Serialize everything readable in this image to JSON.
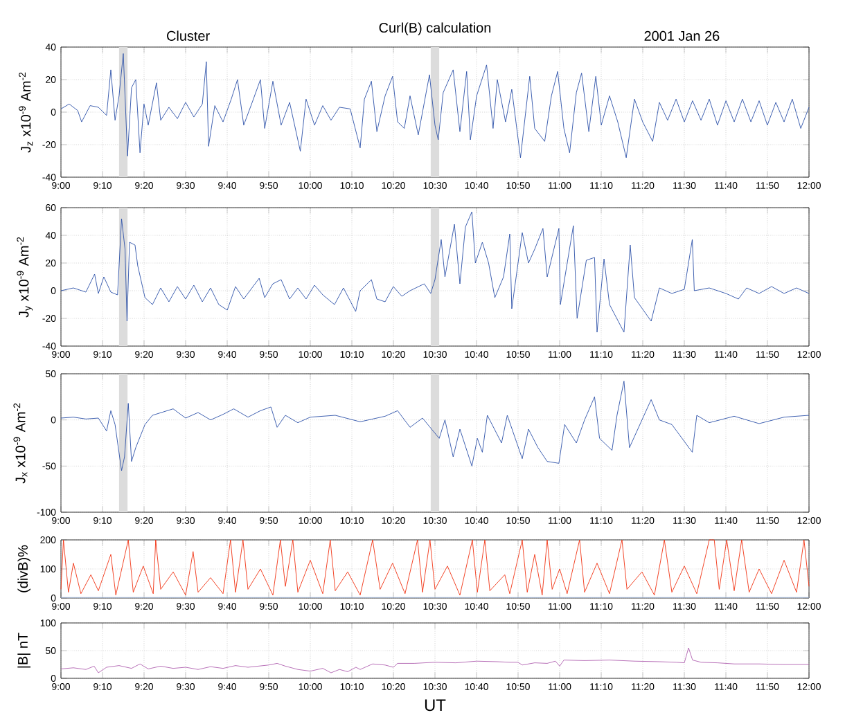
{
  "chart_data": [
    {
      "type": "line",
      "title": "Curl(B) calculation",
      "annotations": [
        "Cluster",
        "2001  Jan  26"
      ],
      "ylabel": "J$_{z}$ x10$^{-9}$ Am$^{-2}$",
      "xlim": [
        9,
        12
      ],
      "ylim": [
        -40,
        40
      ],
      "yticks": [
        -40,
        -20,
        0,
        20,
        40
      ],
      "grid": true,
      "xticks": [
        {
          "value": 9,
          "label": "9:00"
        },
        {
          "value": 9.1667,
          "label": "9:10"
        },
        {
          "value": 9.3333,
          "label": "9:20"
        },
        {
          "value": 9.5,
          "label": "9:30"
        },
        {
          "value": 9.6667,
          "label": "9:40"
        },
        {
          "value": 9.8333,
          "label": "9:50"
        },
        {
          "value": 10,
          "label": "10:00"
        },
        {
          "value": 10.1667,
          "label": "10:10"
        },
        {
          "value": 10.3333,
          "label": "10:20"
        },
        {
          "value": 10.5,
          "label": "10:30"
        },
        {
          "value": 10.6667,
          "label": "10:40"
        },
        {
          "value": 10.8333,
          "label": "10:50"
        },
        {
          "value": 11,
          "label": "11:00"
        },
        {
          "value": 11.1667,
          "label": "11:10"
        },
        {
          "value": 11.3333,
          "label": "11:20"
        },
        {
          "value": 11.5,
          "label": "11:30"
        },
        {
          "value": 11.6667,
          "label": "11:40"
        },
        {
          "value": 11.8333,
          "label": "11:50"
        },
        {
          "value": 12,
          "label": "12:00"
        }
      ],
      "bands": [
        {
          "axis": "x",
          "from": 9.233,
          "to": 9.267,
          "color": "#dcdcdc"
        },
        {
          "axis": "x",
          "from": 10.483,
          "to": 10.517,
          "color": "#dcdcdc"
        }
      ],
      "series": [
        {
          "color": "#2a4fa8",
          "x": [
            9.0,
            9.033,
            9.067,
            9.083,
            9.117,
            9.15,
            9.183,
            9.2,
            9.217,
            9.233,
            9.25,
            9.267,
            9.283,
            9.3,
            9.317,
            9.333,
            9.35,
            9.383,
            9.4,
            9.433,
            9.467,
            9.5,
            9.533,
            9.567,
            9.583,
            9.592,
            9.617,
            9.65,
            9.683,
            9.708,
            9.733,
            9.767,
            9.8,
            9.817,
            9.85,
            9.883,
            9.917,
            9.96,
            9.983,
            10.017,
            10.05,
            10.083,
            10.117,
            10.16,
            10.2,
            10.217,
            10.245,
            10.267,
            10.3,
            10.33,
            10.35,
            10.377,
            10.4,
            10.433,
            10.478,
            10.5,
            10.513,
            10.533,
            10.573,
            10.6,
            10.627,
            10.642,
            10.667,
            10.707,
            10.733,
            10.75,
            10.783,
            10.808,
            10.843,
            10.88,
            10.9,
            10.94,
            10.967,
            10.992,
            11.017,
            11.04,
            11.067,
            11.088,
            11.117,
            11.145,
            11.167,
            11.2,
            11.233,
            11.267,
            11.3,
            11.333,
            11.373,
            11.4,
            11.433,
            11.467,
            11.5,
            11.533,
            11.567,
            11.6,
            11.633,
            11.667,
            11.7,
            11.733,
            11.767,
            11.8,
            11.833,
            11.867,
            11.9,
            11.933,
            11.967,
            12.0
          ],
          "values": [
            2,
            5,
            1,
            -6,
            4,
            3,
            -2,
            26,
            -5,
            10,
            36,
            -27,
            15,
            20,
            -25,
            5,
            -8,
            18,
            -5,
            3,
            -4,
            6,
            -3,
            5,
            31,
            -21,
            4,
            -6,
            8,
            20,
            -8,
            6,
            20,
            -10,
            19,
            -8,
            6,
            -24,
            8,
            -8,
            4,
            -5,
            3,
            2,
            -22,
            8,
            19,
            -12,
            10,
            22,
            -6,
            -10,
            10,
            -14,
            23,
            -8,
            -17,
            12,
            26,
            -12,
            25,
            -17,
            10,
            29,
            -10,
            20,
            -6,
            14,
            -28,
            22,
            -10,
            -18,
            10,
            25,
            -10,
            -25,
            12,
            24,
            -12,
            22,
            -8,
            10,
            -6,
            -28,
            8,
            -6,
            -18,
            6,
            -5,
            8,
            -6,
            7,
            -5,
            8,
            -8,
            7,
            -6,
            8,
            -6,
            7,
            -8,
            6,
            -6,
            8,
            -10,
            3
          ]
        }
      ]
    },
    {
      "type": "line",
      "ylabel": "J$_{y}$ x10$^{-9}$ Am$^{-2}$",
      "xlim": [
        9,
        12
      ],
      "ylim": [
        -40,
        60
      ],
      "yticks": [
        -40,
        -20,
        0,
        20,
        40,
        60
      ],
      "grid": true,
      "xticks": [
        {
          "value": 9,
          "label": "9:00"
        },
        {
          "value": 9.1667,
          "label": "9:10"
        },
        {
          "value": 9.3333,
          "label": "9:20"
        },
        {
          "value": 9.5,
          "label": "9:30"
        },
        {
          "value": 9.6667,
          "label": "9:40"
        },
        {
          "value": 9.8333,
          "label": "9:50"
        },
        {
          "value": 10,
          "label": "10:00"
        },
        {
          "value": 10.1667,
          "label": "10:10"
        },
        {
          "value": 10.3333,
          "label": "10:20"
        },
        {
          "value": 10.5,
          "label": "10:30"
        },
        {
          "value": 10.6667,
          "label": "10:40"
        },
        {
          "value": 10.8333,
          "label": "10:50"
        },
        {
          "value": 11,
          "label": "11:00"
        },
        {
          "value": 11.1667,
          "label": "11:10"
        },
        {
          "value": 11.3333,
          "label": "11:20"
        },
        {
          "value": 11.5,
          "label": "11:30"
        },
        {
          "value": 11.6667,
          "label": "11:40"
        },
        {
          "value": 11.8333,
          "label": "11:50"
        },
        {
          "value": 12,
          "label": "12:00"
        }
      ],
      "bands": [
        {
          "axis": "x",
          "from": 9.233,
          "to": 9.267,
          "color": "#dcdcdc"
        },
        {
          "axis": "x",
          "from": 10.483,
          "to": 10.517,
          "color": "#dcdcdc"
        }
      ],
      "series": [
        {
          "color": "#2a4fa8",
          "x": [
            9.0,
            9.05,
            9.1,
            9.135,
            9.15,
            9.172,
            9.2,
            9.227,
            9.243,
            9.257,
            9.265,
            9.275,
            9.297,
            9.308,
            9.337,
            9.367,
            9.4,
            9.433,
            9.467,
            9.5,
            9.533,
            9.567,
            9.6,
            9.633,
            9.667,
            9.7,
            9.733,
            9.795,
            9.817,
            9.85,
            9.883,
            9.917,
            9.95,
            9.983,
            10.017,
            10.05,
            10.097,
            10.133,
            10.182,
            10.2,
            10.245,
            10.267,
            10.3,
            10.333,
            10.367,
            10.4,
            10.457,
            10.483,
            10.5,
            10.525,
            10.54,
            10.578,
            10.6,
            10.622,
            10.648,
            10.662,
            10.69,
            10.715,
            10.74,
            10.775,
            10.8,
            10.808,
            10.85,
            10.875,
            10.9,
            10.933,
            10.95,
            10.997,
            11.003,
            11.055,
            11.07,
            11.107,
            11.14,
            11.15,
            11.178,
            11.2,
            11.258,
            11.283,
            11.3,
            11.367,
            11.4,
            11.45,
            11.5,
            11.532,
            11.54,
            11.6,
            11.667,
            11.717,
            11.75,
            11.8,
            11.85,
            11.9,
            11.95,
            12.0
          ],
          "values": [
            0,
            2,
            -1,
            12,
            -2,
            10,
            -1,
            -3,
            52,
            30,
            -22,
            35,
            33,
            18,
            -5,
            -10,
            2,
            -8,
            3,
            -6,
            4,
            -8,
            2,
            -10,
            -14,
            3,
            -6,
            9,
            -5,
            5,
            8,
            -6,
            2,
            -6,
            4,
            -3,
            -10,
            2,
            -15,
            0,
            8,
            -6,
            -8,
            3,
            -4,
            0,
            5,
            -2,
            8,
            37,
            10,
            48,
            5,
            46,
            57,
            20,
            35,
            20,
            -5,
            10,
            41,
            -13,
            42,
            20,
            30,
            45,
            10,
            45,
            -10,
            47,
            -20,
            22,
            24,
            -30,
            23,
            -10,
            -30,
            33,
            -5,
            -22,
            2,
            -2,
            1,
            37,
            0,
            2,
            -2,
            -6,
            2,
            -2,
            3,
            -2,
            2,
            -2
          ]
        }
      ]
    },
    {
      "type": "line",
      "ylabel": "J$_{x}$ x10$^{-9}$ Am$^{-2}$",
      "xlim": [
        9,
        12
      ],
      "ylim": [
        -100,
        50
      ],
      "yticks": [
        -100,
        -50,
        0,
        50
      ],
      "grid": true,
      "xticks": [
        {
          "value": 9,
          "label": "9:00"
        },
        {
          "value": 9.1667,
          "label": "9:10"
        },
        {
          "value": 9.3333,
          "label": "9:20"
        },
        {
          "value": 9.5,
          "label": "9:30"
        },
        {
          "value": 9.6667,
          "label": "9:40"
        },
        {
          "value": 9.8333,
          "label": "9:50"
        },
        {
          "value": 10,
          "label": "10:00"
        },
        {
          "value": 10.1667,
          "label": "10:10"
        },
        {
          "value": 10.3333,
          "label": "10:20"
        },
        {
          "value": 10.5,
          "label": "10:30"
        },
        {
          "value": 10.6667,
          "label": "10:40"
        },
        {
          "value": 10.8333,
          "label": "10:50"
        },
        {
          "value": 11,
          "label": "11:00"
        },
        {
          "value": 11.1667,
          "label": "11:10"
        },
        {
          "value": 11.3333,
          "label": "11:20"
        },
        {
          "value": 11.5,
          "label": "11:30"
        },
        {
          "value": 11.6667,
          "label": "11:40"
        },
        {
          "value": 11.8333,
          "label": "11:50"
        },
        {
          "value": 12,
          "label": "12:00"
        }
      ],
      "bands": [
        {
          "axis": "x",
          "from": 9.233,
          "to": 9.267,
          "color": "#dcdcdc"
        },
        {
          "axis": "x",
          "from": 10.483,
          "to": 10.517,
          "color": "#dcdcdc"
        }
      ],
      "series": [
        {
          "color": "#2a4fa8",
          "x": [
            9.0,
            9.05,
            9.1,
            9.15,
            9.183,
            9.2,
            9.217,
            9.243,
            9.255,
            9.27,
            9.283,
            9.3,
            9.337,
            9.367,
            9.45,
            9.5,
            9.55,
            9.6,
            9.65,
            9.693,
            9.75,
            9.8,
            9.842,
            9.867,
            9.9,
            9.95,
            10.0,
            10.1,
            10.2,
            10.3,
            10.35,
            10.4,
            10.45,
            10.517,
            10.54,
            10.573,
            10.6,
            10.648,
            10.67,
            10.69,
            10.71,
            10.767,
            10.79,
            10.85,
            10.875,
            10.913,
            10.95,
            10.997,
            11.02,
            11.067,
            11.1,
            11.14,
            11.16,
            11.21,
            11.23,
            11.258,
            11.28,
            11.367,
            11.4,
            11.45,
            11.532,
            11.55,
            11.6,
            11.7,
            11.8,
            11.9,
            12.0
          ],
          "values": [
            2,
            3,
            1,
            2,
            -12,
            10,
            -5,
            -55,
            -40,
            18,
            -45,
            -30,
            -5,
            5,
            12,
            2,
            8,
            0,
            6,
            12,
            3,
            10,
            14,
            -8,
            5,
            -3,
            3,
            5,
            -2,
            4,
            10,
            -8,
            2,
            -20,
            0,
            -40,
            -10,
            -50,
            -20,
            -35,
            5,
            -25,
            5,
            -42,
            -10,
            -30,
            -45,
            -47,
            -5,
            -25,
            0,
            25,
            -20,
            -33,
            5,
            42,
            -30,
            22,
            0,
            -5,
            -35,
            5,
            -3,
            4,
            -4,
            3,
            5
          ]
        }
      ]
    },
    {
      "type": "line",
      "ylabel": "(divB)%",
      "xlim": [
        9,
        12
      ],
      "ylim": [
        0,
        200
      ],
      "yticks": [
        0,
        100,
        200
      ],
      "grid": true,
      "xticks": [
        {
          "value": 9,
          "label": "9:00"
        },
        {
          "value": 9.1667,
          "label": "9:10"
        },
        {
          "value": 9.3333,
          "label": "9:20"
        },
        {
          "value": 9.5,
          "label": "9:30"
        },
        {
          "value": 9.6667,
          "label": "9:40"
        },
        {
          "value": 9.8333,
          "label": "9:50"
        },
        {
          "value": 10,
          "label": "10:00"
        },
        {
          "value": 10.1667,
          "label": "10:10"
        },
        {
          "value": 10.3333,
          "label": "10:20"
        },
        {
          "value": 10.5,
          "label": "10:30"
        },
        {
          "value": 10.6667,
          "label": "10:40"
        },
        {
          "value": 10.8333,
          "label": "10:50"
        },
        {
          "value": 11,
          "label": "11:00"
        },
        {
          "value": 11.1667,
          "label": "11:10"
        },
        {
          "value": 11.3333,
          "label": "11:20"
        },
        {
          "value": 11.5,
          "label": "11:30"
        },
        {
          "value": 11.6667,
          "label": "11:40"
        },
        {
          "value": 11.8333,
          "label": "11:50"
        },
        {
          "value": 12,
          "label": "12:00"
        }
      ],
      "series": [
        {
          "color": "#a8c0e8",
          "x": [
            9,
            12
          ],
          "values": [
            2,
            2
          ]
        },
        {
          "color": "#f03010",
          "x": [
            9.0,
            9.01,
            9.03,
            9.05,
            9.08,
            9.12,
            9.15,
            9.2,
            9.22,
            9.27,
            9.29,
            9.33,
            9.37,
            9.38,
            9.4,
            9.45,
            9.5,
            9.53,
            9.55,
            9.6,
            9.65,
            9.68,
            9.7,
            9.73,
            9.75,
            9.8,
            9.85,
            9.88,
            9.9,
            9.93,
            9.95,
            10.0,
            10.05,
            10.08,
            10.1,
            10.15,
            10.2,
            10.25,
            10.28,
            10.33,
            10.38,
            10.43,
            10.45,
            10.48,
            10.5,
            10.55,
            10.6,
            10.65,
            10.67,
            10.7,
            10.72,
            10.78,
            10.8,
            10.85,
            10.87,
            10.9,
            10.93,
            10.95,
            10.97,
            11.0,
            11.03,
            11.08,
            11.1,
            11.15,
            11.2,
            11.25,
            11.27,
            11.33,
            11.38,
            11.42,
            11.45,
            11.5,
            11.55,
            11.6,
            11.62,
            11.64,
            11.67,
            11.7,
            11.73,
            11.76,
            11.8,
            11.85,
            11.9,
            11.95,
            11.98,
            12.0
          ],
          "values": [
            30,
            200,
            20,
            120,
            15,
            80,
            25,
            150,
            10,
            200,
            20,
            110,
            15,
            200,
            30,
            90,
            10,
            160,
            20,
            70,
            15,
            200,
            20,
            200,
            30,
            100,
            10,
            200,
            40,
            200,
            20,
            130,
            15,
            200,
            25,
            90,
            10,
            200,
            30,
            120,
            15,
            200,
            20,
            200,
            30,
            110,
            10,
            200,
            20,
            200,
            25,
            80,
            15,
            200,
            20,
            150,
            10,
            200,
            30,
            100,
            15,
            200,
            20,
            120,
            15,
            200,
            30,
            90,
            10,
            200,
            20,
            110,
            15,
            200,
            200,
            30,
            200,
            25,
            200,
            20,
            100,
            15,
            130,
            20,
            200,
            40
          ]
        }
      ]
    },
    {
      "type": "line",
      "ylabel": "|B| nT",
      "xlabel": "UT",
      "xlim": [
        9,
        12
      ],
      "ylim": [
        0,
        100
      ],
      "yticks": [
        0,
        50,
        100
      ],
      "grid": true,
      "xticks": [
        {
          "value": 9,
          "label": "9:00"
        },
        {
          "value": 9.1667,
          "label": "9:10"
        },
        {
          "value": 9.3333,
          "label": "9:20"
        },
        {
          "value": 9.5,
          "label": "9:30"
        },
        {
          "value": 9.6667,
          "label": "9:40"
        },
        {
          "value": 9.8333,
          "label": "9:50"
        },
        {
          "value": 10,
          "label": "10:00"
        },
        {
          "value": 10.1667,
          "label": "10:10"
        },
        {
          "value": 10.3333,
          "label": "10:20"
        },
        {
          "value": 10.5,
          "label": "10:30"
        },
        {
          "value": 10.6667,
          "label": "10:40"
        },
        {
          "value": 10.8333,
          "label": "10:50"
        },
        {
          "value": 11,
          "label": "11:00"
        },
        {
          "value": 11.1667,
          "label": "11:10"
        },
        {
          "value": 11.3333,
          "label": "11:20"
        },
        {
          "value": 11.5,
          "label": "11:30"
        },
        {
          "value": 11.6667,
          "label": "11:40"
        },
        {
          "value": 11.8333,
          "label": "11:50"
        },
        {
          "value": 12,
          "label": "12:00"
        }
      ],
      "series": [
        {
          "color": "#b060b0",
          "x": [
            9.0,
            9.05,
            9.1,
            9.133,
            9.15,
            9.183,
            9.233,
            9.283,
            9.317,
            9.35,
            9.4,
            9.45,
            9.5,
            9.55,
            9.6,
            9.65,
            9.7,
            9.75,
            9.833,
            9.867,
            9.9,
            9.95,
            10.0,
            10.05,
            10.083,
            10.117,
            10.15,
            10.183,
            10.2,
            10.25,
            10.3,
            10.333,
            10.35,
            10.417,
            10.5,
            10.583,
            10.667,
            10.75,
            10.8,
            10.833,
            10.85,
            10.9,
            10.95,
            10.983,
            11.0,
            11.017,
            11.1,
            11.2,
            11.3,
            11.4,
            11.467,
            11.5,
            11.517,
            11.533,
            11.567,
            11.633,
            11.7,
            11.8,
            11.9,
            12.0
          ],
          "values": [
            17,
            19,
            16,
            22,
            10,
            20,
            23,
            18,
            26,
            17,
            22,
            18,
            20,
            16,
            21,
            18,
            23,
            20,
            24,
            27,
            22,
            16,
            13,
            18,
            10,
            16,
            12,
            20,
            16,
            26,
            24,
            20,
            27,
            27,
            29,
            28,
            31,
            30,
            29,
            29,
            24,
            28,
            27,
            31,
            22,
            33,
            32,
            33,
            31,
            30,
            29,
            28,
            55,
            33,
            29,
            28,
            26,
            26,
            25,
            25
          ]
        }
      ]
    }
  ]
}
